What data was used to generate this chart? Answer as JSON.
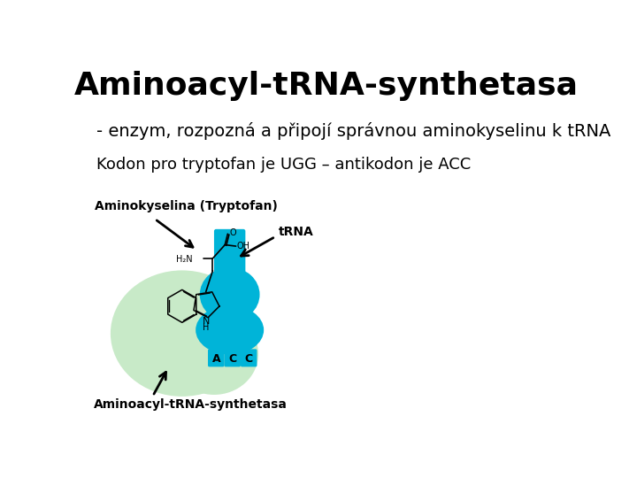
{
  "title": "Aminoacyl-tRNA-synthetasa",
  "subtitle": "- enzym, rozpozná a připojí správnou aminokyselinu k tRNA",
  "kodon_text": "Kodon pro tryptofan je UGG – antikodon je ACC",
  "label_amino": "Aminokyselina (Tryptofan)",
  "label_trna": "tRNA",
  "label_enzyme": "Aminoacyl-tRNA-synthetasa",
  "acc_letters": [
    "A",
    "C",
    "C"
  ],
  "bg_color": "#ffffff",
  "green_blob_color": "#c8eac8",
  "cyan_trna_color": "#00b4d8",
  "title_fontsize": 26,
  "subtitle_fontsize": 14,
  "kodon_fontsize": 13,
  "label_fontsize": 10,
  "chem_fontsize": 7
}
